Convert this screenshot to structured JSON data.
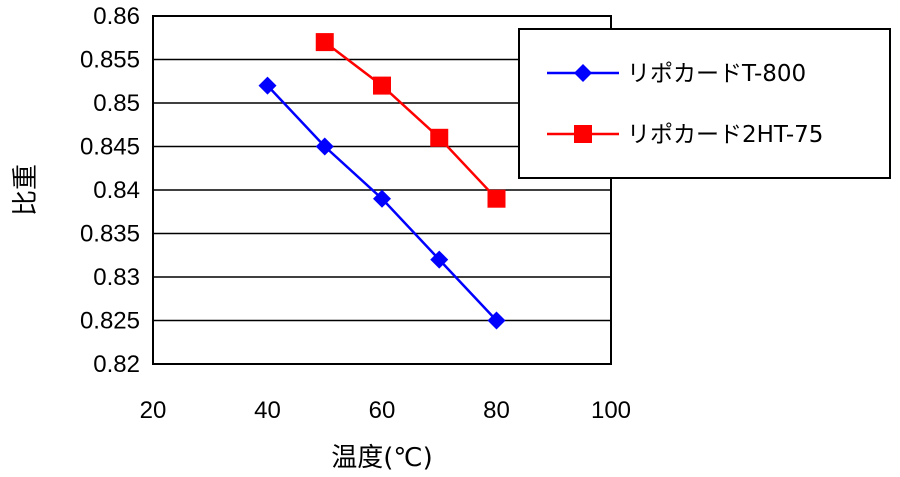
{
  "chart_data": {
    "type": "line",
    "title": "",
    "xlabel": "温度(℃)",
    "ylabel": "比重",
    "xlim": [
      20,
      100
    ],
    "ylim": [
      0.82,
      0.86
    ],
    "x_ticks": [
      "20",
      "40",
      "60",
      "80",
      "100"
    ],
    "y_ticks": [
      "0.86",
      "0.855",
      "0.85",
      "0.845",
      "0.84",
      "0.835",
      "0.83",
      "0.825",
      "0.82"
    ],
    "grid": "horizontal",
    "legend_position": "top-right",
    "series": [
      {
        "name": "リポカードT-800",
        "color": "#0000ff",
        "marker": "diamond",
        "x": [
          40,
          50,
          60,
          70,
          80
        ],
        "y": [
          0.852,
          0.845,
          0.839,
          0.832,
          0.825
        ]
      },
      {
        "name": "リポカード2HT-75",
        "color": "#ff0000",
        "marker": "square",
        "x": [
          50,
          60,
          70,
          80
        ],
        "y": [
          0.857,
          0.852,
          0.846,
          0.839
        ]
      }
    ]
  }
}
